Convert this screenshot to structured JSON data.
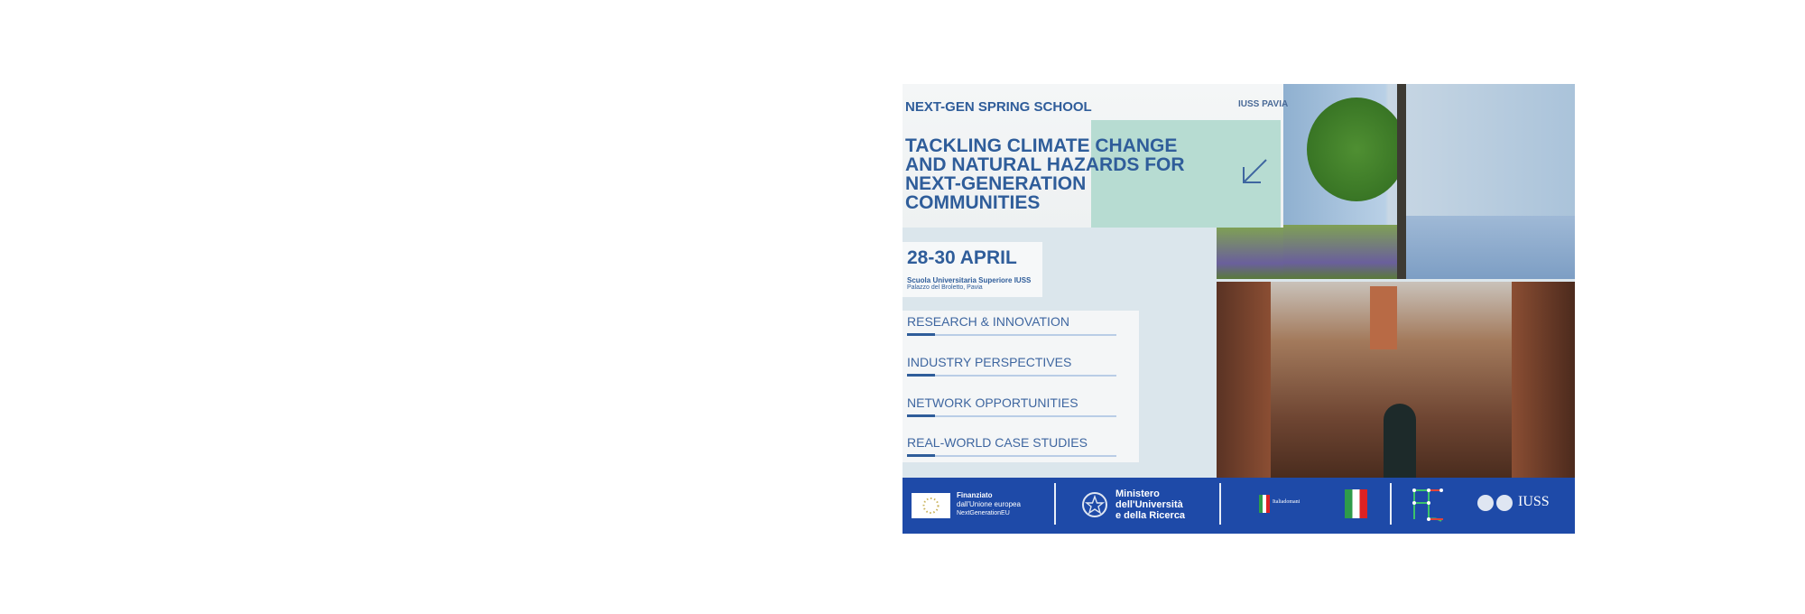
{
  "poster": {
    "school": "NEXT-GEN SPRING SCHOOL",
    "organizer": "IUSS PAVIA",
    "title": "TACKLING CLIMATE CHANGE AND NATURAL HAZARDS FOR NEXT-GENERATION COMMUNITIES",
    "date": "28-30 APRIL",
    "venue_name": "Scuola Universitaria Superiore IUSS",
    "venue_address": "Palazzo del Broletto, Pavia",
    "topics": [
      "RESEARCH & INNOVATION",
      "INDUSTRY PERSPECTIVES",
      "NETWORK OPPORTUNITIES",
      "REAL-WORLD CASE STUDIES"
    ],
    "arrow_icon": "arrow-down-left-icon",
    "accent_color": "#2f5d9a",
    "footer_color": "#1e4aa8"
  },
  "footer": {
    "eu_line1": "Finanziato",
    "eu_line2": "dall'Unione europea",
    "eu_line3": "NextGenerationEU",
    "mur_line1": "Ministero",
    "mur_line2": "dell'Università",
    "mur_line3": "e della Ricerca",
    "italiadomani": "Italiadomani",
    "iuss": "IUSS"
  }
}
